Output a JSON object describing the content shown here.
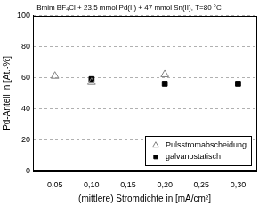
{
  "chart_data": {
    "type": "scatter",
    "title": "Bmim BF₄Cl + 23,5 mmol Pd(II) + 47 mmol Sn(II), T=80 °C",
    "x_label": "(mittlere) Stromdichte in [mA/cm²]",
    "y_label": "Pd-Anteil in [At.-%]",
    "series": [
      {
        "name": "Pulsstromabscheidung",
        "color": "#808080",
        "marker": "open_triangle",
        "x": [
          0.05,
          0.1,
          0.2
        ],
        "values": [
          61,
          57,
          62
        ]
      },
      {
        "name": "galvanostatisch",
        "color": "#000000",
        "marker": "filled_square",
        "x": [
          0.1,
          0.2,
          0.3
        ],
        "values": [
          59,
          56,
          56
        ]
      }
    ],
    "xlim": [
      0.02,
      0.325
    ],
    "xticks": [
      {
        "value": 0.05,
        "label": "0,05"
      },
      {
        "value": 0.1,
        "label": "0,10"
      },
      {
        "value": 0.15,
        "label": "0,15"
      },
      {
        "value": 0.2,
        "label": "0,20"
      },
      {
        "value": 0.25,
        "label": "0,25"
      },
      {
        "value": 0.3,
        "label": "0,30"
      }
    ],
    "ylim": [
      0,
      100
    ],
    "yticks": [
      0,
      20,
      40,
      60,
      80,
      100
    ],
    "grid": true,
    "legend": "lower right"
  }
}
